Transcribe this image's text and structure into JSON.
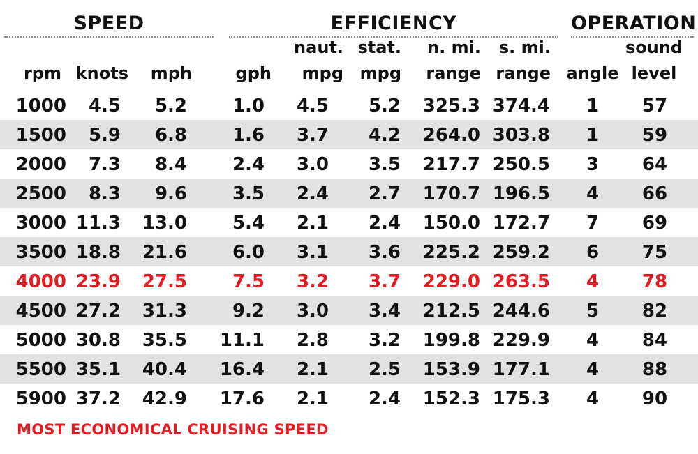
{
  "groups": {
    "speed": "SPEED",
    "efficiency": "EFFICIENCY",
    "operation": "OPERATION"
  },
  "columns": {
    "rpm": [
      "",
      "rpm"
    ],
    "knots": [
      "",
      "knots"
    ],
    "mph": [
      "",
      "mph"
    ],
    "gph": [
      "",
      "gph"
    ],
    "naut_mpg": [
      "naut.",
      "mpg"
    ],
    "stat_mpg": [
      "stat.",
      "mpg"
    ],
    "nmi_range": [
      "n. mi.",
      "range"
    ],
    "smi_range": [
      "s. mi.",
      "range"
    ],
    "angle": [
      "",
      "angle"
    ],
    "sound_level": [
      "sound",
      "level"
    ]
  },
  "rows": [
    [
      "1000",
      "4.5",
      "5.2",
      "1.0",
      "4.5",
      "5.2",
      "325.3",
      "374.4",
      "1",
      "57"
    ],
    [
      "1500",
      "5.9",
      "6.8",
      "1.6",
      "3.7",
      "4.2",
      "264.0",
      "303.8",
      "1",
      "59"
    ],
    [
      "2000",
      "7.3",
      "8.4",
      "2.4",
      "3.0",
      "3.5",
      "217.7",
      "250.5",
      "3",
      "64"
    ],
    [
      "2500",
      "8.3",
      "9.6",
      "3.5",
      "2.4",
      "2.7",
      "170.7",
      "196.5",
      "4",
      "66"
    ],
    [
      "3000",
      "11.3",
      "13.0",
      "5.4",
      "2.1",
      "2.4",
      "150.0",
      "172.7",
      "7",
      "69"
    ],
    [
      "3500",
      "18.8",
      "21.6",
      "6.0",
      "3.1",
      "3.6",
      "225.2",
      "259.2",
      "6",
      "75"
    ],
    [
      "4000",
      "23.9",
      "27.5",
      "7.5",
      "3.2",
      "3.7",
      "229.0",
      "263.5",
      "4",
      "78"
    ],
    [
      "4500",
      "27.2",
      "31.3",
      "9.2",
      "3.0",
      "3.4",
      "212.5",
      "244.6",
      "5",
      "82"
    ],
    [
      "5000",
      "30.8",
      "35.5",
      "11.1",
      "2.8",
      "3.2",
      "199.8",
      "229.9",
      "4",
      "84"
    ],
    [
      "5500",
      "35.1",
      "40.4",
      "16.4",
      "2.1",
      "2.5",
      "153.9",
      "177.1",
      "4",
      "88"
    ],
    [
      "5900",
      "37.2",
      "42.9",
      "17.6",
      "2.1",
      "2.4",
      "152.3",
      "175.3",
      "4",
      "90"
    ]
  ],
  "highlight_row": 6,
  "highlight_color": "#e31b23",
  "stripe_color": "#e2e2e2",
  "footnote": "MOST ECONOMICAL CRUISING SPEED"
}
